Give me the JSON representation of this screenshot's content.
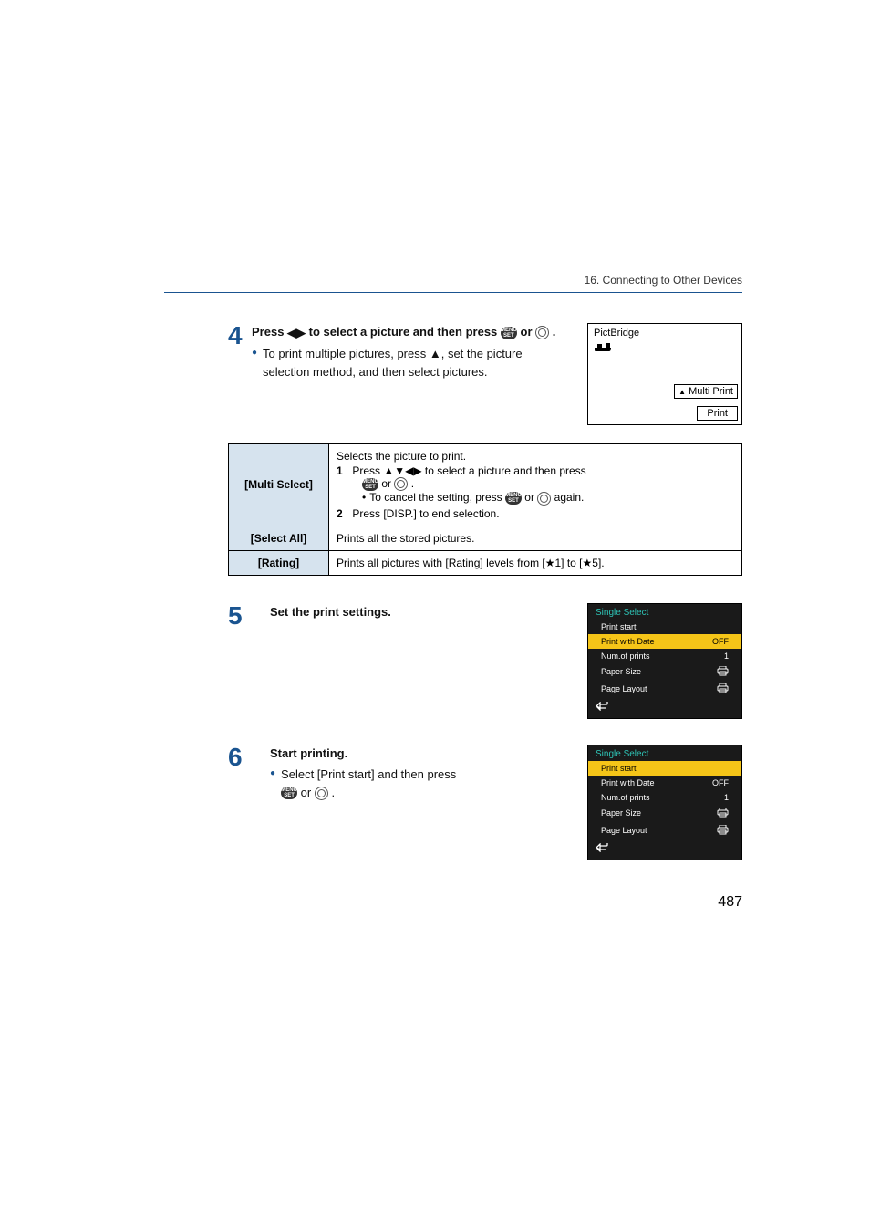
{
  "chapter": "16. Connecting to Other Devices",
  "page_number": "487",
  "step4": {
    "num": "4",
    "heading_before": "Press ",
    "heading_after": " to select a picture and then press ",
    "bullet1_a": "To print multiple pictures, press ",
    "bullet1_b": ", set the picture selection method, and then select pictures.",
    "box": {
      "title": "PictBridge",
      "multiprint": "Multi Print",
      "print": "Print"
    }
  },
  "options_table": {
    "rows": [
      {
        "label": "[Multi Select]",
        "line0": "Selects the picture to print.",
        "sub1_a": "Press ",
        "sub1_b": " to select a picture and then press ",
        "sub1_c": " or ",
        "sub1_bullet_a": "To cancel the setting, press ",
        "sub1_bullet_b": " or ",
        "sub1_bullet_c": " again.",
        "sub2": "Press [DISP.] to end selection."
      },
      {
        "label": "[Select All]",
        "desc": "Prints all the stored pictures."
      },
      {
        "label": "[Rating]",
        "desc": "Prints all pictures with [Rating] levels from [★1] to [★5]."
      }
    ]
  },
  "step5": {
    "num": "5",
    "heading": "Set the print settings.",
    "menu": {
      "title": "Single Select",
      "rows": [
        {
          "label": "Print start",
          "val": "",
          "sel": false
        },
        {
          "label": "Print with Date",
          "val": "OFF",
          "sel": true
        },
        {
          "label": "Num.of prints",
          "val": "1",
          "sel": false
        },
        {
          "label": "Paper Size",
          "val": "printer",
          "sel": false
        },
        {
          "label": "Page Layout",
          "val": "printer",
          "sel": false
        }
      ]
    }
  },
  "step6": {
    "num": "6",
    "heading": "Start printing.",
    "bullet_a": "Select [Print start] and then press ",
    "bullet_b": " or ",
    "menu": {
      "title": "Single Select",
      "rows": [
        {
          "label": "Print start",
          "val": "",
          "sel": true
        },
        {
          "label": "Print with Date",
          "val": "OFF",
          "sel": false
        },
        {
          "label": "Num.of prints",
          "val": "1",
          "sel": false
        },
        {
          "label": "Paper Size",
          "val": "printer",
          "sel": false
        },
        {
          "label": "Page Layout",
          "val": "printer",
          "sel": false
        }
      ]
    }
  },
  "colors": {
    "accent": "#1a5490",
    "table_header_bg": "#d6e3ee",
    "menu_bg": "#1a1a1a",
    "menu_title": "#2ec4b6",
    "menu_highlight": "#f5c518"
  }
}
